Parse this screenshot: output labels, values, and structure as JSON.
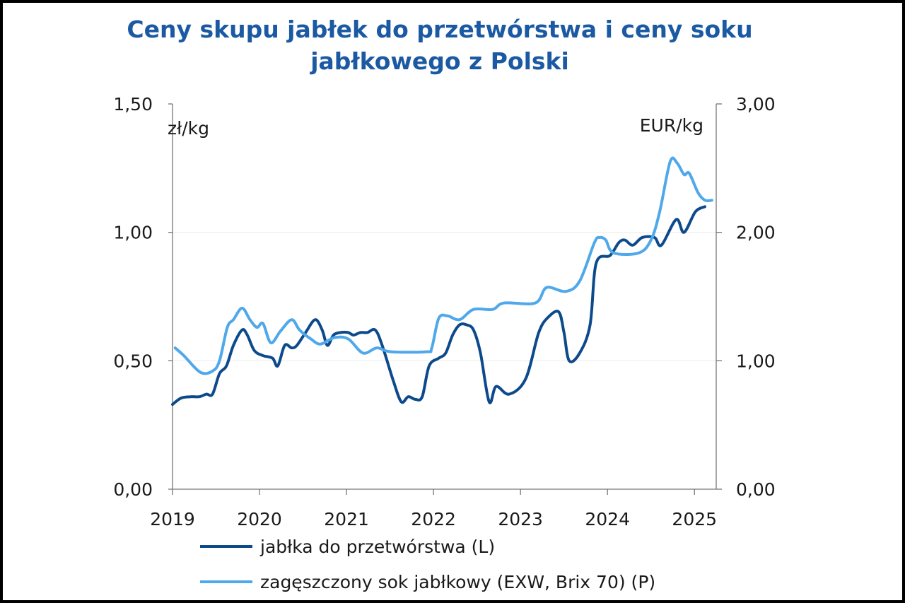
{
  "chart_data": {
    "type": "line",
    "title_lines": [
      "Ceny skupu jabłek do przetwórstwa i ceny soku",
      "jabłkowego z Polski"
    ],
    "left_unit": "zł/kg",
    "right_unit": "EUR/kg",
    "xlim": [
      2019,
      2025.25
    ],
    "x_ticks": [
      "2019",
      "2020",
      "2021",
      "2022",
      "2023",
      "2024",
      "2025"
    ],
    "left_ylim": [
      0,
      1.5
    ],
    "left_ticks": [
      "0,00",
      "0,50",
      "1,00",
      "1,50"
    ],
    "right_ylim": [
      0,
      3.0
    ],
    "right_ticks": [
      "0,00",
      "1,00",
      "2,00",
      "3,00"
    ],
    "grid": "horizontal",
    "legend_position": "bottom",
    "series": [
      {
        "name": "jabłka do przetwórstwa (L)",
        "axis": "left",
        "color": "#0d4a8c",
        "x": [
          2019.0,
          2019.1,
          2019.21,
          2019.31,
          2019.39,
          2019.46,
          2019.54,
          2019.62,
          2019.7,
          2019.8,
          2019.86,
          2019.94,
          2020.04,
          2020.15,
          2020.21,
          2020.29,
          2020.37,
          2020.43,
          2020.53,
          2020.64,
          2020.72,
          2020.78,
          2020.85,
          2020.93,
          2021.02,
          2021.08,
          2021.16,
          2021.24,
          2021.33,
          2021.41,
          2021.54,
          2021.63,
          2021.71,
          2021.79,
          2021.87,
          2021.95,
          2022.06,
          2022.14,
          2022.22,
          2022.3,
          2022.38,
          2022.46,
          2022.54,
          2022.64,
          2022.72,
          2022.87,
          2023.06,
          2023.21,
          2023.32,
          2023.44,
          2023.5,
          2023.56,
          2023.68,
          2023.8,
          2023.87,
          2024.03,
          2024.13,
          2024.2,
          2024.29,
          2024.4,
          2024.54,
          2024.62,
          2024.79,
          2024.88,
          2025.01,
          2025.12
        ],
        "y": [
          0.33,
          0.355,
          0.36,
          0.36,
          0.37,
          0.37,
          0.45,
          0.48,
          0.56,
          0.62,
          0.6,
          0.54,
          0.52,
          0.51,
          0.48,
          0.56,
          0.55,
          0.56,
          0.61,
          0.66,
          0.62,
          0.56,
          0.6,
          0.61,
          0.61,
          0.6,
          0.61,
          0.61,
          0.62,
          0.56,
          0.42,
          0.34,
          0.36,
          0.35,
          0.36,
          0.48,
          0.51,
          0.53,
          0.6,
          0.64,
          0.64,
          0.62,
          0.53,
          0.34,
          0.4,
          0.37,
          0.43,
          0.61,
          0.67,
          0.69,
          0.61,
          0.5,
          0.53,
          0.64,
          0.88,
          0.91,
          0.96,
          0.97,
          0.95,
          0.98,
          0.98,
          0.95,
          1.05,
          1.0,
          1.08,
          1.1
        ]
      },
      {
        "name": "zagęszczony sok jabłkowy (EXW, Brix 70) (P)",
        "axis": "right",
        "color": "#4fa8ea",
        "x": [
          2019.03,
          2019.13,
          2019.32,
          2019.46,
          2019.54,
          2019.63,
          2019.7,
          2019.8,
          2019.89,
          2019.97,
          2020.04,
          2020.13,
          2020.24,
          2020.37,
          2020.46,
          2020.59,
          2020.7,
          2020.86,
          2021.02,
          2021.19,
          2021.35,
          2021.51,
          2021.92,
          2021.98,
          2022.06,
          2022.16,
          2022.3,
          2022.46,
          2022.68,
          2022.81,
          2023.17,
          2023.3,
          2023.52,
          2023.68,
          2023.85,
          2023.91,
          2023.98,
          2024.07,
          2024.36,
          2024.5,
          2024.6,
          2024.72,
          2024.8,
          2024.88,
          2024.94,
          2025.04,
          2025.12,
          2025.2
        ],
        "y": [
          1.1,
          1.04,
          0.91,
          0.92,
          1.0,
          1.26,
          1.32,
          1.41,
          1.32,
          1.26,
          1.29,
          1.14,
          1.23,
          1.32,
          1.24,
          1.17,
          1.13,
          1.18,
          1.17,
          1.06,
          1.1,
          1.07,
          1.07,
          1.1,
          1.33,
          1.35,
          1.32,
          1.4,
          1.4,
          1.45,
          1.45,
          1.57,
          1.54,
          1.62,
          1.92,
          1.96,
          1.94,
          1.84,
          1.84,
          1.94,
          2.16,
          2.55,
          2.54,
          2.45,
          2.46,
          2.31,
          2.25,
          2.25
        ]
      }
    ]
  }
}
